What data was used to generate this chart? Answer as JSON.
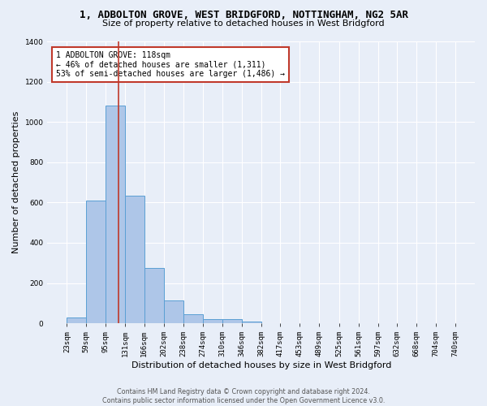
{
  "title": "1, ADBOLTON GROVE, WEST BRIDGFORD, NOTTINGHAM, NG2 5AR",
  "subtitle": "Size of property relative to detached houses in West Bridgford",
  "xlabel": "Distribution of detached houses by size in West Bridgford",
  "ylabel": "Number of detached properties",
  "footer_line1": "Contains HM Land Registry data © Crown copyright and database right 2024.",
  "footer_line2": "Contains public sector information licensed under the Open Government Licence v3.0.",
  "bin_edges": [
    23,
    59,
    95,
    131,
    166,
    202,
    238,
    274,
    310,
    346,
    382,
    417,
    453,
    489,
    525,
    561,
    597,
    632,
    668,
    704,
    740
  ],
  "bar_heights": [
    30,
    610,
    1080,
    635,
    275,
    115,
    45,
    22,
    22,
    10,
    0,
    0,
    0,
    0,
    0,
    0,
    0,
    0,
    0,
    0
  ],
  "bar_color": "#aec6e8",
  "bar_edge_color": "#5a9fd4",
  "vline_x": 118,
  "vline_color": "#c0392b",
  "vline_lw": 1.2,
  "annotation_text": "1 ADBOLTON GROVE: 118sqm\n← 46% of detached houses are smaller (1,311)\n53% of semi-detached houses are larger (1,486) →",
  "annotation_box_color": "white",
  "annotation_box_edge": "#c0392b",
  "annotation_fontsize": 7,
  "ylim": [
    0,
    1400
  ],
  "yticks": [
    0,
    200,
    400,
    600,
    800,
    1000,
    1200,
    1400
  ],
  "bg_color": "#e8eef8",
  "plot_bg_color": "#e8eef8",
  "grid_color": "white",
  "title_fontsize": 9,
  "subtitle_fontsize": 8,
  "xlabel_fontsize": 8,
  "ylabel_fontsize": 8,
  "tick_fontsize": 6.5,
  "footer_fontsize": 5.8
}
